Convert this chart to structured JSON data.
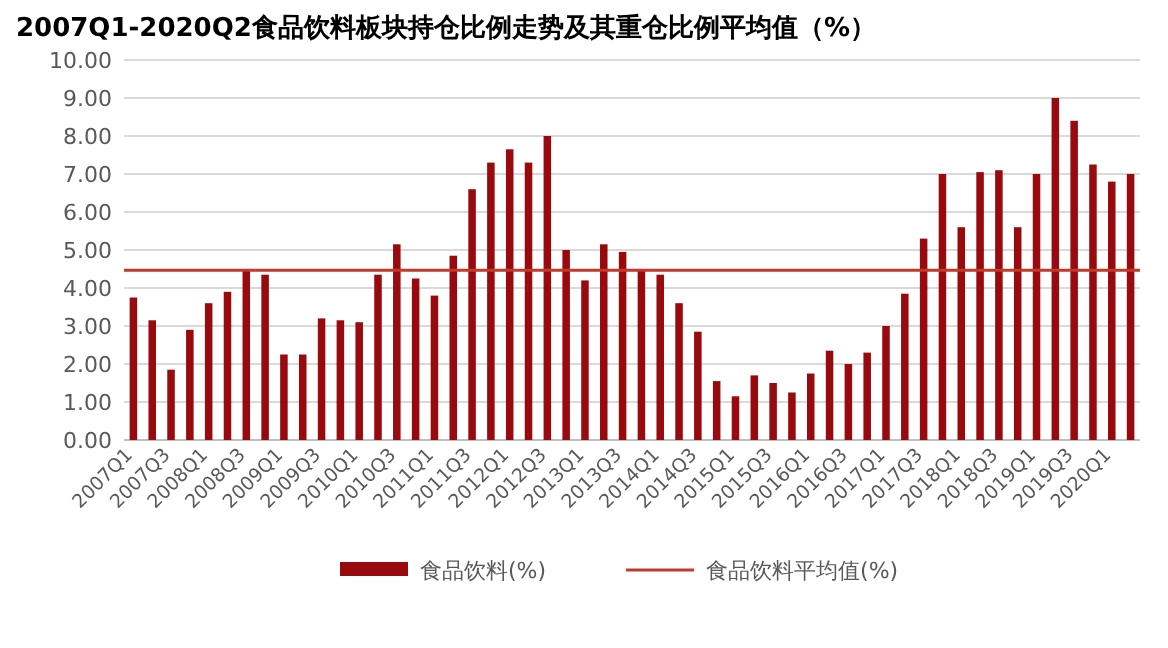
{
  "chart_data": {
    "type": "bar",
    "title": "2007Q1-2020Q2食品饮料板块持仓比例走势及其重仓比例平均值（%）",
    "categories": [
      "2007Q1",
      null,
      "2007Q3",
      null,
      "2008Q1",
      null,
      "2008Q3",
      null,
      "2009Q1",
      null,
      "2009Q3",
      null,
      "2010Q1",
      null,
      "2010Q3",
      null,
      "2011Q1",
      null,
      "2011Q3",
      null,
      "2012Q1",
      null,
      "2012Q3",
      null,
      "2013Q1",
      null,
      "2013Q3",
      null,
      "2014Q1",
      null,
      "2014Q3",
      null,
      "2015Q1",
      null,
      "2015Q3",
      null,
      "2016Q1",
      null,
      "2016Q3",
      null,
      "2017Q1",
      null,
      "2017Q3",
      null,
      "2018Q1",
      null,
      "2018Q3",
      null,
      "2019Q1",
      null,
      "2019Q3",
      null,
      "2020Q1",
      null
    ],
    "series": [
      {
        "name": "食品饮料(%)",
        "color": "#990a0f",
        "values": [
          3.75,
          3.15,
          1.85,
          2.9,
          3.6,
          3.9,
          4.45,
          4.35,
          2.25,
          2.25,
          3.2,
          3.15,
          3.1,
          4.35,
          5.15,
          4.25,
          3.8,
          4.85,
          6.6,
          7.3,
          7.65,
          7.3,
          8.0,
          5.0,
          4.2,
          5.15,
          4.95,
          4.45,
          4.35,
          3.6,
          2.85,
          1.55,
          1.15,
          1.7,
          1.5,
          1.25,
          1.75,
          2.35,
          2.0,
          2.3,
          3.0,
          3.85,
          5.3,
          7.0,
          5.6,
          7.05,
          7.1,
          5.6,
          7.0,
          9.0,
          8.4,
          7.25,
          6.8,
          7.0
        ]
      }
    ],
    "ref_lines": [
      {
        "axis": "y",
        "value": 4.47,
        "label": "食品饮料平均值(%)",
        "color": "#c0392b"
      }
    ],
    "ylim": [
      0,
      10
    ],
    "yticks": [
      {
        "value": 0,
        "label": "0.00"
      },
      {
        "value": 1,
        "label": "1.00"
      },
      {
        "value": 2,
        "label": "2.00"
      },
      {
        "value": 3,
        "label": "3.00"
      },
      {
        "value": 4,
        "label": "4.00"
      },
      {
        "value": 5,
        "label": "5.00"
      },
      {
        "value": 6,
        "label": "6.00"
      },
      {
        "value": 7,
        "label": "7.00"
      },
      {
        "value": 8,
        "label": "8.00"
      },
      {
        "value": 9,
        "label": "9.00"
      },
      {
        "value": 10,
        "label": "10.00"
      }
    ],
    "grid": "y",
    "legend": "bottom"
  }
}
